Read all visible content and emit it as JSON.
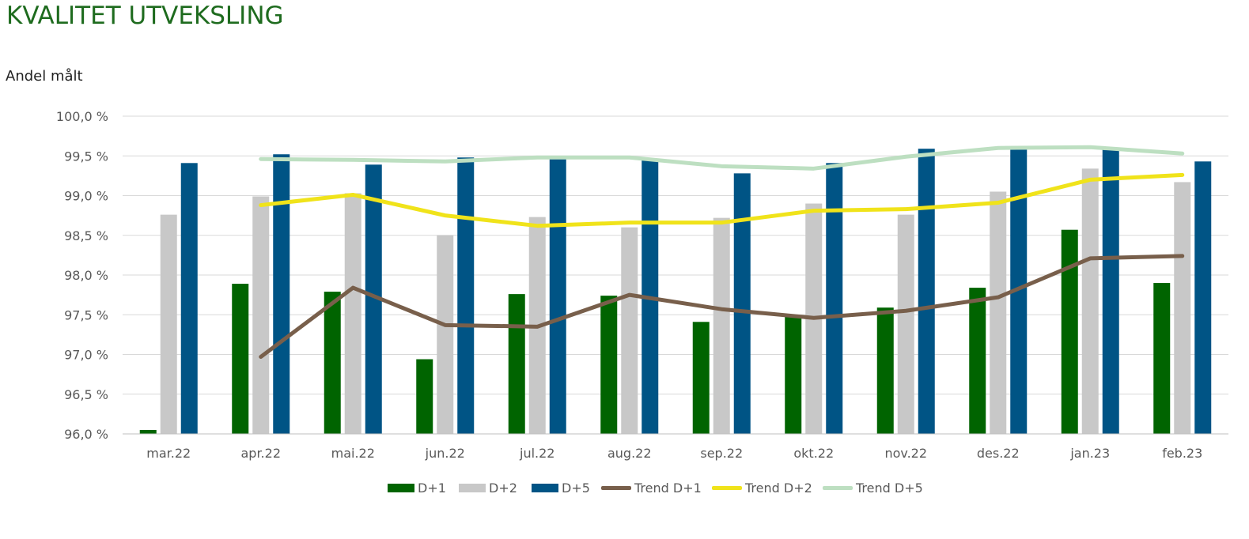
{
  "title": "KVALITET UTVEKSLING",
  "subtitle": "Andel målt",
  "colors": {
    "d1": "#006400",
    "d2": "#c8c8c8",
    "d5": "#005485",
    "trend_d1": "#785f4b",
    "trend_d2": "#f0e31a",
    "trend_d5": "#bddfc1",
    "grid": "#d9d9d9",
    "title": "#1e6b1e"
  },
  "chart_data": {
    "type": "bar",
    "categories": [
      "mar.22",
      "apr.22",
      "mai.22",
      "jun.22",
      "jul.22",
      "aug.22",
      "sep.22",
      "okt.22",
      "nov.22",
      "des.22",
      "jan.23",
      "feb.23"
    ],
    "ylim": [
      96.0,
      100.0
    ],
    "yticks": [
      "96,0 %",
      "96,5 %",
      "97,0 %",
      "97,5 %",
      "98,0 %",
      "98,5 %",
      "99,0 %",
      "99,5 %",
      "100,0 %"
    ],
    "ytick_values": [
      96.0,
      96.5,
      97.0,
      97.5,
      98.0,
      98.5,
      99.0,
      99.5,
      100.0
    ],
    "grid": true,
    "legend_position": "bottom",
    "series": [
      {
        "name": "D+1",
        "kind": "bar",
        "color_key": "d1",
        "values": [
          96.05,
          97.89,
          97.79,
          96.94,
          97.76,
          97.74,
          97.41,
          97.49,
          97.59,
          97.84,
          98.57,
          97.9
        ]
      },
      {
        "name": "D+2",
        "kind": "bar",
        "color_key": "d2",
        "values": [
          98.76,
          98.99,
          99.03,
          98.5,
          98.73,
          98.6,
          98.72,
          98.9,
          98.76,
          99.05,
          99.34,
          99.17
        ]
      },
      {
        "name": "D+5",
        "kind": "bar",
        "color_key": "d5",
        "values": [
          99.41,
          99.52,
          99.39,
          99.48,
          99.49,
          99.46,
          99.28,
          99.41,
          99.59,
          99.58,
          99.59,
          99.43
        ]
      },
      {
        "name": "Trend D+1",
        "kind": "line",
        "color_key": "trend_d1",
        "values": [
          null,
          96.97,
          97.84,
          97.37,
          97.35,
          97.75,
          97.57,
          97.46,
          97.55,
          97.72,
          98.21,
          98.24
        ]
      },
      {
        "name": "Trend D+2",
        "kind": "line",
        "color_key": "trend_d2",
        "values": [
          null,
          98.88,
          99.01,
          98.75,
          98.62,
          98.66,
          98.66,
          98.81,
          98.83,
          98.91,
          99.2,
          99.26
        ]
      },
      {
        "name": "Trend D+5",
        "kind": "line",
        "color_key": "trend_d5",
        "values": [
          null,
          99.46,
          99.45,
          99.43,
          99.48,
          99.48,
          99.37,
          99.34,
          99.49,
          99.6,
          99.61,
          99.53
        ]
      }
    ]
  }
}
